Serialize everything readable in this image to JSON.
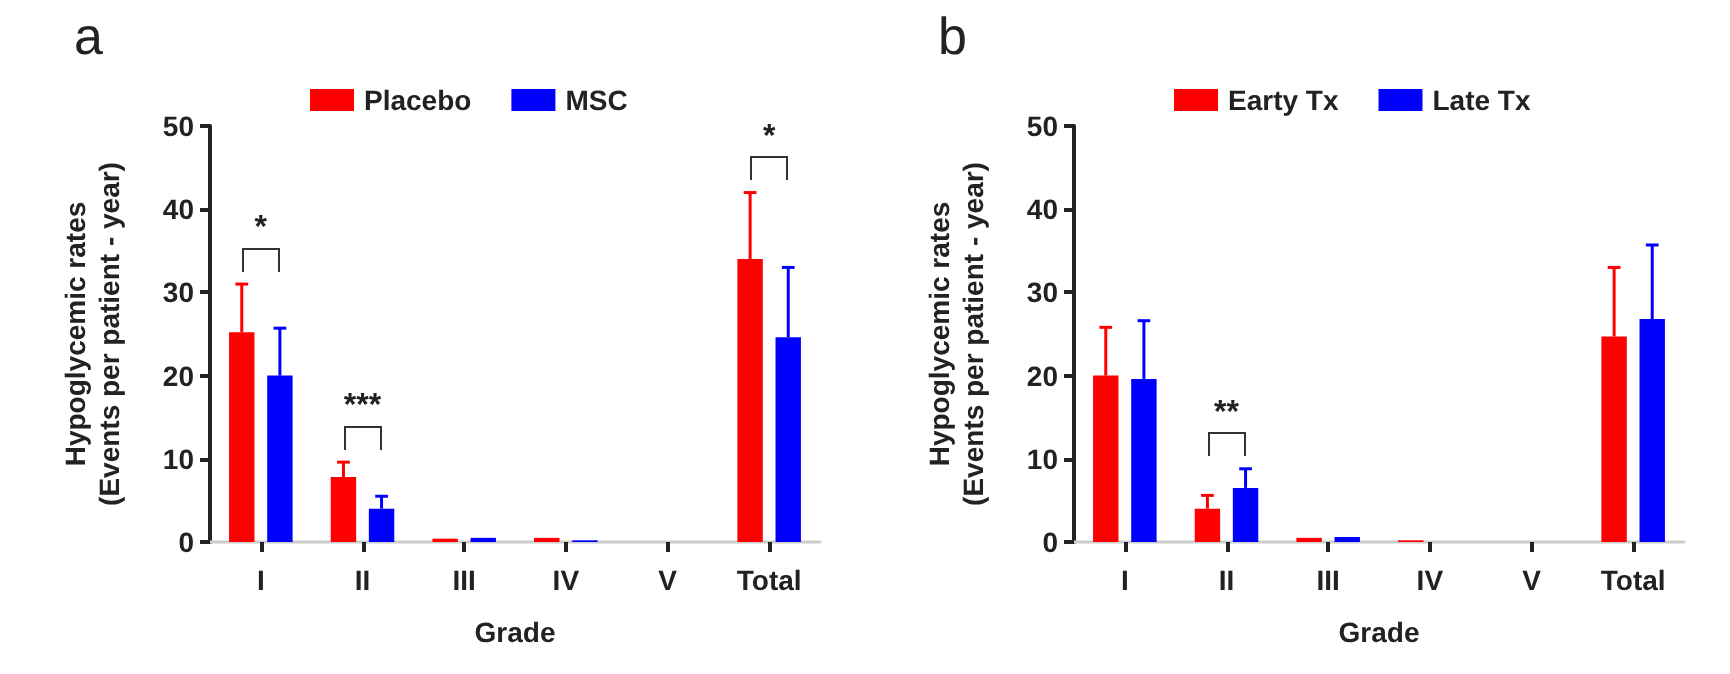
{
  "chart_data": [
    {
      "type": "bar",
      "title": "a",
      "categories": [
        "I",
        "II",
        "III",
        "IV",
        "V",
        "Total"
      ],
      "xlabel": "Grade",
      "ylabel": "Hypoglycemic rates\n(Events per patient - year)",
      "ylim": [
        0,
        50
      ],
      "yticks": [
        0,
        10,
        20,
        30,
        40,
        50
      ],
      "legend": "top",
      "grid": false,
      "series": [
        {
          "name": "Placebo",
          "color": "#ff0000",
          "values": [
            25.2,
            7.8,
            0.4,
            0.5,
            0,
            34
          ],
          "errors": [
            [
              25.2,
              31
            ],
            [
              7.8,
              9.6
            ],
            null,
            null,
            null,
            [
              34,
              42
            ]
          ]
        },
        {
          "name": "MSC",
          "color": "#0000ff",
          "values": [
            20,
            4,
            0.5,
            0.2,
            0,
            24.6
          ],
          "errors": [
            [
              20,
              25.7
            ],
            [
              4,
              5.5
            ],
            null,
            null,
            null,
            [
              24.6,
              33
            ]
          ]
        }
      ],
      "annotations": [
        "*",
        "***",
        "*"
      ]
    },
    {
      "type": "bar",
      "title": "b",
      "categories": [
        "I",
        "II",
        "III",
        "IV",
        "V",
        "Total"
      ],
      "xlabel": "Grade",
      "ylabel": "Hypoglycemic rates\n(Events per patient - year)",
      "ylim": [
        0,
        50
      ],
      "yticks": [
        0,
        10,
        20,
        30,
        40,
        50
      ],
      "legend": "top",
      "grid": false,
      "series": [
        {
          "name": "Earty Tx",
          "color": "#ff0000",
          "values": [
            20,
            4,
            0.5,
            0.2,
            0,
            24.7
          ],
          "errors": [
            [
              20,
              25.8
            ],
            [
              4,
              5.6
            ],
            null,
            null,
            null,
            [
              24.7,
              33
            ]
          ]
        },
        {
          "name": "Late Tx",
          "color": "#0000ff",
          "values": [
            19.6,
            6.5,
            0.6,
            0,
            0,
            26.8
          ],
          "errors": [
            [
              19.6,
              26.6
            ],
            [
              6.5,
              8.8
            ],
            null,
            null,
            null,
            [
              26.8,
              35.7
            ]
          ]
        }
      ],
      "annotations": [
        "**"
      ]
    }
  ]
}
